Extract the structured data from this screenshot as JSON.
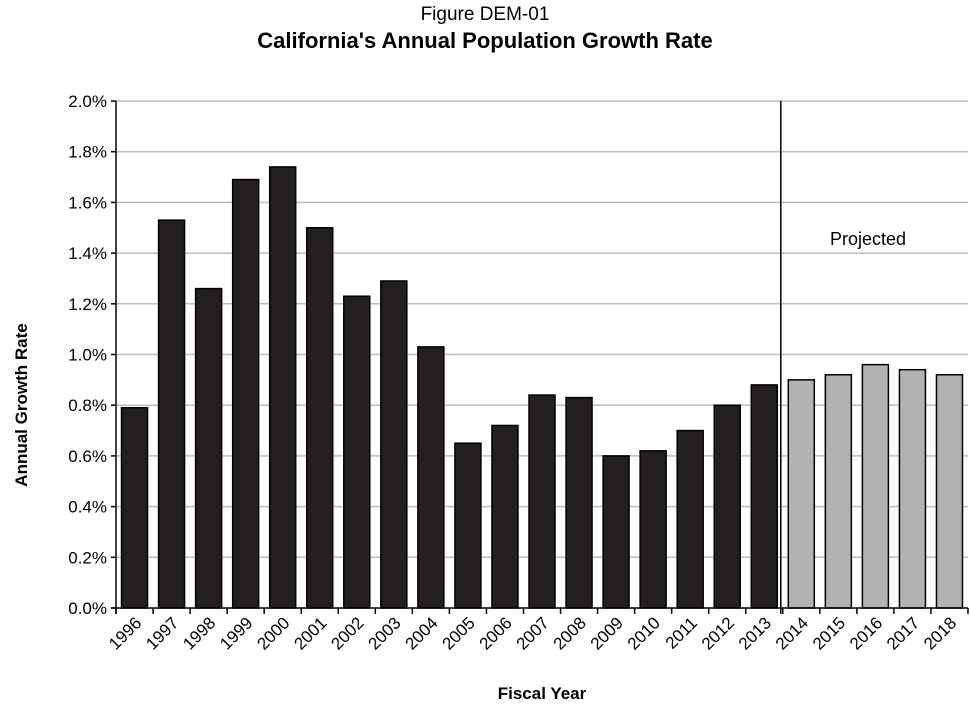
{
  "figure_caption": "Figure DEM-01",
  "chart_data": {
    "type": "bar",
    "title": "California's Annual Population Growth Rate",
    "xlabel": "Fiscal Year",
    "ylabel": "Annual Growth Rate",
    "ylim": [
      0,
      2.0
    ],
    "y_tick_labels": [
      "0.0%",
      "0.2%",
      "0.4%",
      "0.6%",
      "0.8%",
      "1.0%",
      "1.2%",
      "1.4%",
      "1.6%",
      "1.8%",
      "2.0%"
    ],
    "grid": true,
    "categories": [
      "1996",
      "1997",
      "1998",
      "1999",
      "2000",
      "2001",
      "2002",
      "2003",
      "2004",
      "2005",
      "2006",
      "2007",
      "2008",
      "2009",
      "2010",
      "2011",
      "2012",
      "2013",
      "2014",
      "2015",
      "2016",
      "2017",
      "2018"
    ],
    "values": [
      0.79,
      1.53,
      1.26,
      1.69,
      1.74,
      1.5,
      1.23,
      1.29,
      1.03,
      0.65,
      0.72,
      0.84,
      0.83,
      0.6,
      0.62,
      0.7,
      0.8,
      0.88,
      0.9,
      0.92,
      0.96,
      0.94,
      0.92
    ],
    "projected_from": "2014",
    "annotation": "Projected",
    "colors": {
      "actual": "#231f20",
      "projected": "#b3b3b3",
      "grid": "#bdbdbd"
    }
  }
}
